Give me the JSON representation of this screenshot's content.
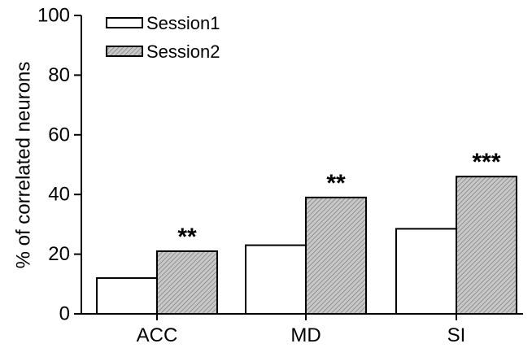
{
  "chart_data": {
    "type": "bar",
    "title": "",
    "xlabel": "",
    "ylabel": "% of correlated neurons",
    "ylim": [
      0,
      100
    ],
    "yticks": [
      "0",
      "20",
      "40",
      "60",
      "80",
      "100"
    ],
    "categories": [
      "ACC",
      "MD",
      "SI"
    ],
    "series": [
      {
        "name": "Session1",
        "values": [
          12,
          23,
          28.5
        ],
        "fill": "white"
      },
      {
        "name": "Session2",
        "values": [
          21,
          39,
          46
        ],
        "fill": "hatched-gray"
      }
    ],
    "significance": [
      "**",
      "**",
      "***"
    ],
    "legend_placement": "top-left",
    "grid": false,
    "colors": {
      "axis": "#000000",
      "session1_fill": "#ffffff",
      "session2_fill": "#c8c8c8",
      "hatch": "#7a7a7a"
    }
  }
}
